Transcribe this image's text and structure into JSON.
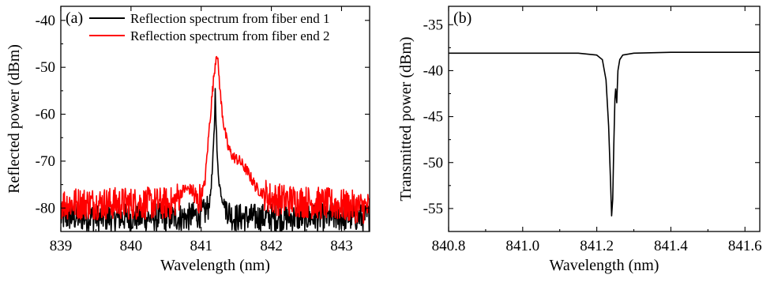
{
  "chart_data": [
    {
      "type": "line",
      "panel_label": "(a)",
      "xlabel": "Wavelength (nm)",
      "ylabel": "Reflected power (dBm)",
      "xlim": [
        839,
        843.4
      ],
      "ylim": [
        -85,
        -37
      ],
      "xticks": [
        839,
        840,
        841,
        842,
        843
      ],
      "xtick_labels": [
        "839",
        "840",
        "841",
        "842",
        "843"
      ],
      "yticks": [
        -80,
        -70,
        -60,
        -50,
        -40
      ],
      "ytick_labels": [
        "-80",
        "-70",
        "-60",
        "-50",
        "-40"
      ],
      "legend_position": "top-right",
      "series": [
        {
          "name": "Reflection spectrum from fiber end 1",
          "color": "#000000",
          "noise_floor": -82,
          "noise_amplitude": 3,
          "x": [
            839.0,
            840.8,
            841.05,
            841.12,
            841.16,
            841.19,
            841.2,
            841.21,
            841.23,
            841.26,
            841.3,
            841.36,
            841.45,
            841.55,
            843.4
          ],
          "y": [
            -82,
            -82,
            -81,
            -79,
            -72,
            -62,
            -55,
            -60,
            -70,
            -75,
            -78,
            -80,
            -82,
            -82,
            -82
          ]
        },
        {
          "name": "Reflection spectrum from fiber end 2",
          "color": "#ff0000",
          "noise_floor": -79.5,
          "noise_amplitude": 3.5,
          "x": [
            839.0,
            840.6,
            840.75,
            840.85,
            840.95,
            841.05,
            841.12,
            841.18,
            841.22,
            841.25,
            841.28,
            841.32,
            841.38,
            841.45,
            841.55,
            841.65,
            841.8,
            842.0,
            843.4
          ],
          "y": [
            -79,
            -79,
            -76,
            -76,
            -79,
            -75,
            -62,
            -52,
            -46.5,
            -51,
            -57,
            -62,
            -67,
            -69,
            -70,
            -72,
            -76,
            -78,
            -80
          ]
        }
      ]
    },
    {
      "type": "line",
      "panel_label": "(b)",
      "xlabel": "Wavelength (nm)",
      "ylabel": "Transmitted power (dBm)",
      "xlim": [
        840.8,
        841.64
      ],
      "ylim": [
        -57.5,
        -33
      ],
      "xticks": [
        840.8,
        841.0,
        841.2,
        841.4,
        841.6
      ],
      "xtick_labels": [
        "840.8",
        "841.0",
        "841.2",
        "841.4",
        "841.6"
      ],
      "yticks": [
        -55,
        -50,
        -45,
        -40,
        -35
      ],
      "ytick_labels": [
        "-55",
        "-50",
        "-45",
        "-40",
        "-35"
      ],
      "series": [
        {
          "color": "#000000",
          "x": [
            840.8,
            841.0,
            841.15,
            841.2,
            841.215,
            841.225,
            841.232,
            841.237,
            841.24,
            841.243,
            841.246,
            841.249,
            841.251,
            841.254,
            841.257,
            841.262,
            841.27,
            841.3,
            841.4,
            841.64
          ],
          "y": [
            -38.1,
            -38.1,
            -38.1,
            -38.3,
            -38.8,
            -41,
            -46,
            -52,
            -55.8,
            -54,
            -48,
            -43,
            -42,
            -43.5,
            -40,
            -38.8,
            -38.3,
            -38.1,
            -38.0,
            -38.0
          ]
        }
      ]
    }
  ]
}
